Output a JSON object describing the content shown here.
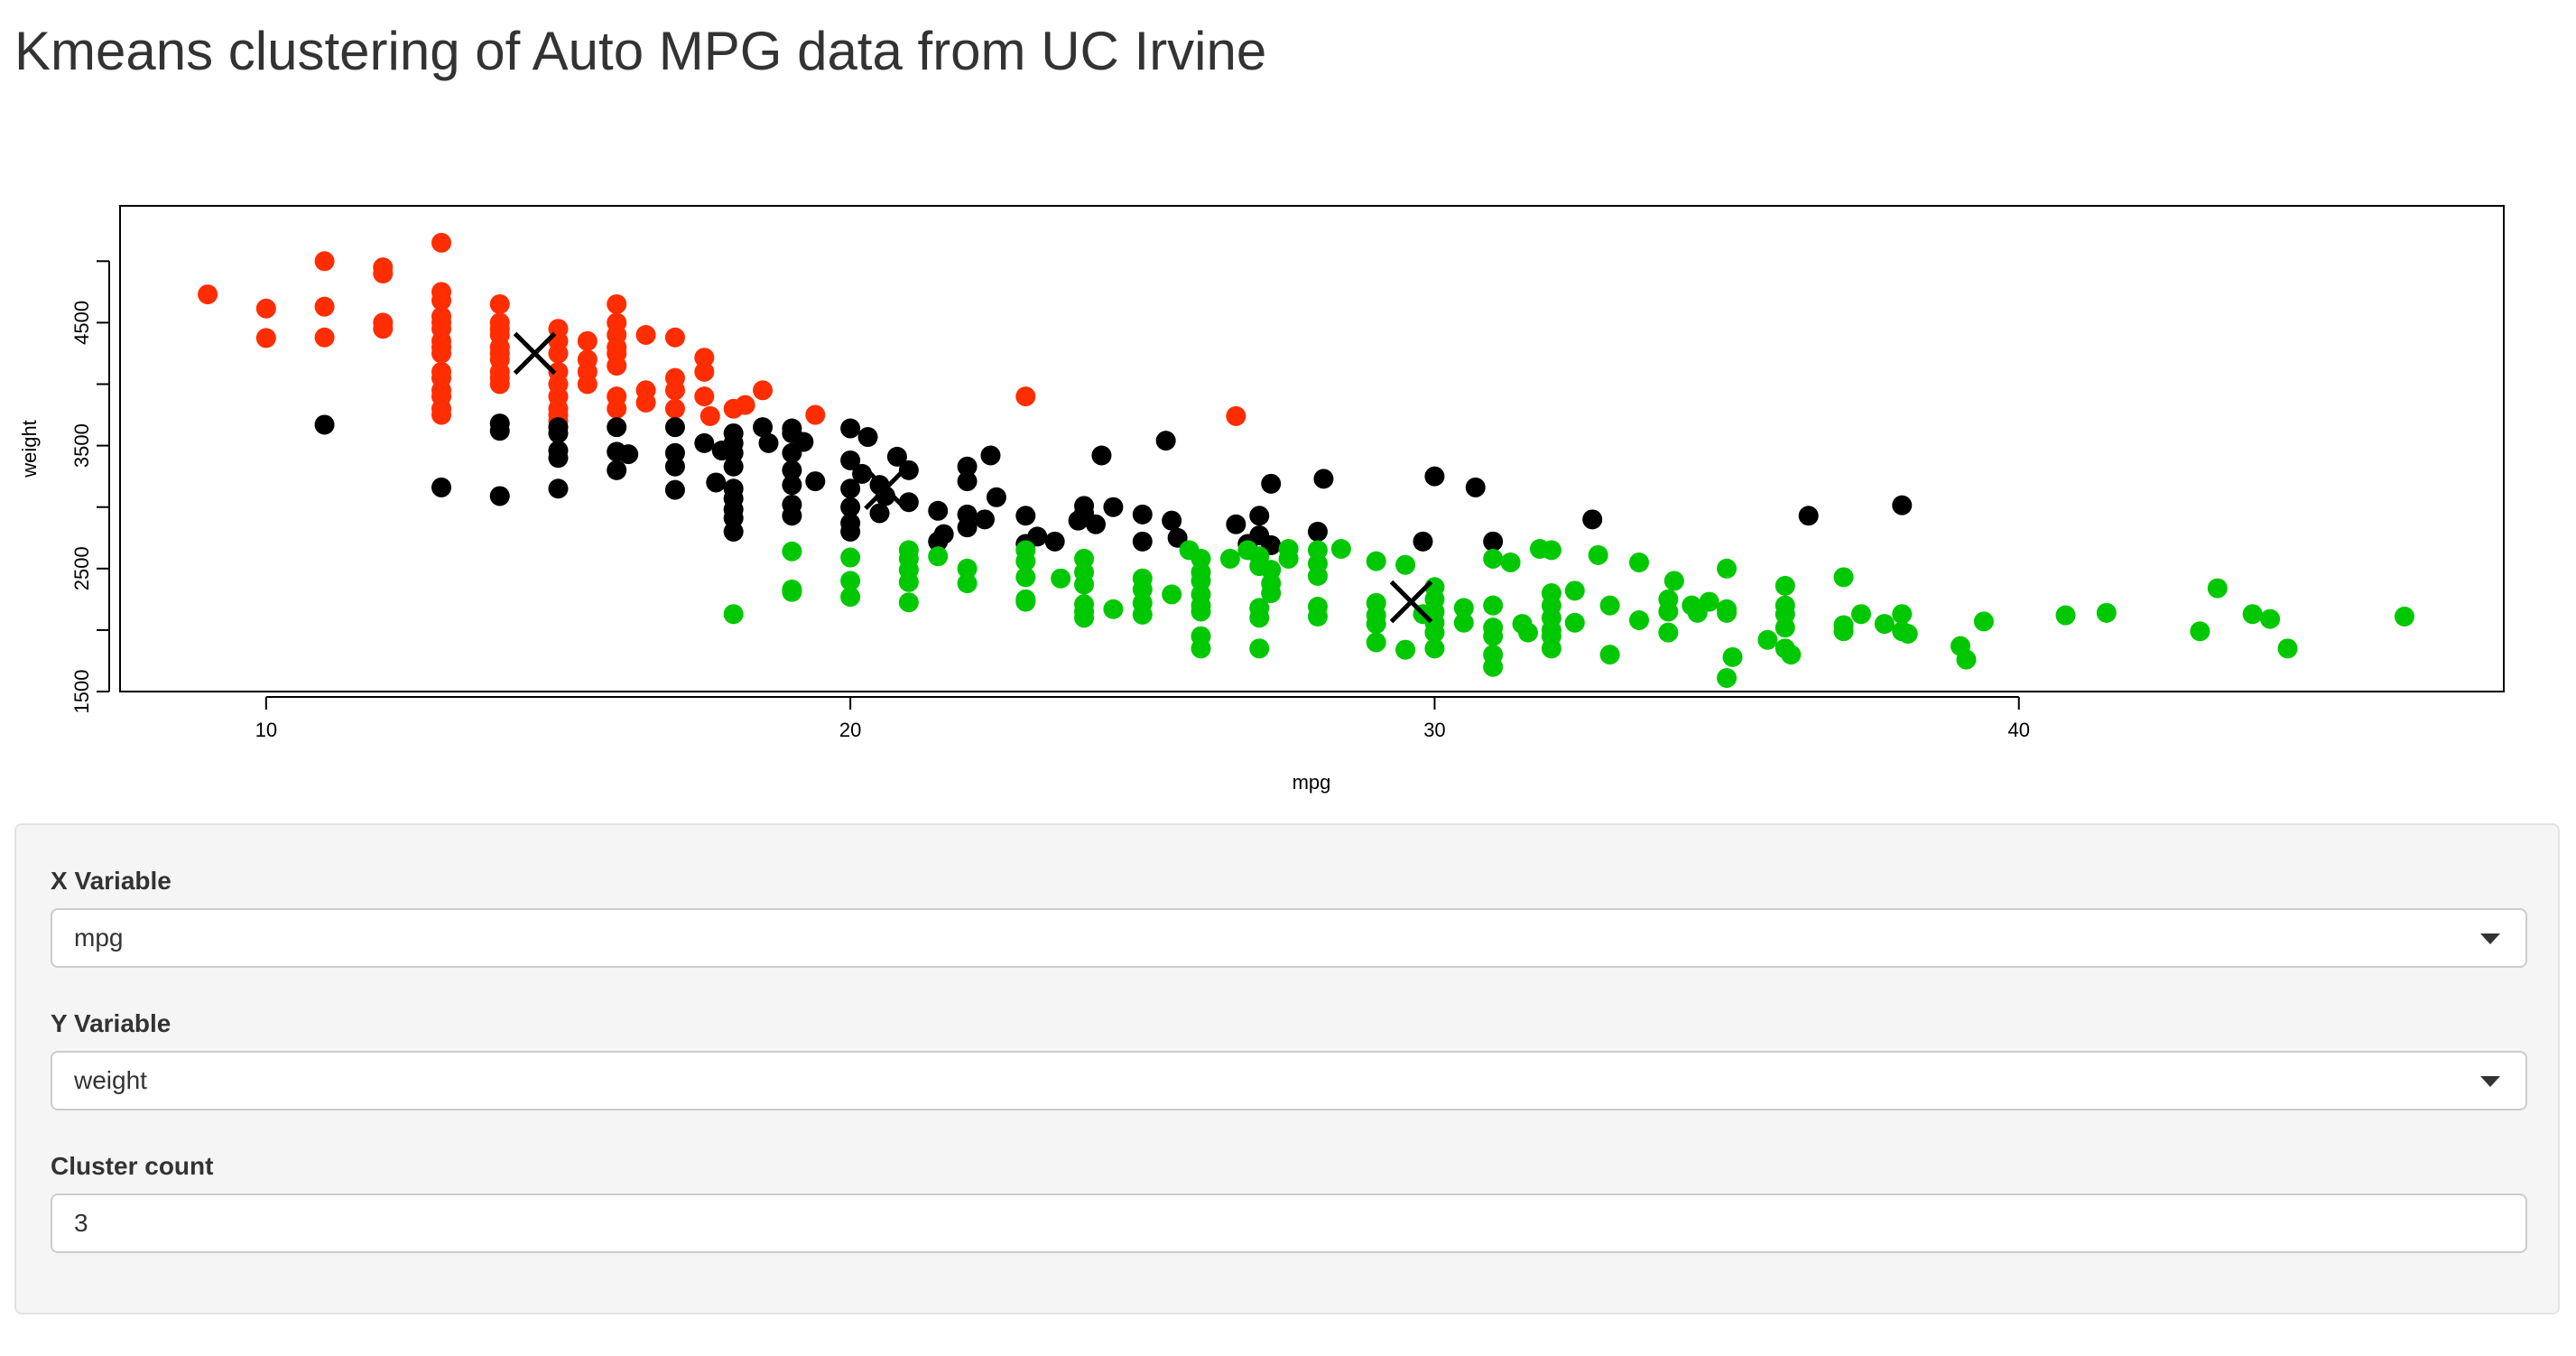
{
  "page": {
    "title": "Kmeans clustering of Auto MPG data from UC Irvine"
  },
  "controls": {
    "x_variable": {
      "label": "X Variable",
      "value": "mpg"
    },
    "y_variable": {
      "label": "Y Variable",
      "value": "weight"
    },
    "cluster_count": {
      "label": "Cluster count",
      "value": "3"
    }
  },
  "colors": {
    "cluster_1": "#ff2d00",
    "cluster_2": "#000000",
    "cluster_3": "#00c800",
    "center": "#000000"
  },
  "chart_data": {
    "type": "scatter",
    "title": "",
    "xlabel": "mpg",
    "ylabel": "weight",
    "xlim": [
      7.5,
      48.3
    ],
    "ylim": [
      1500,
      5450
    ],
    "xticks": [
      10,
      20,
      30,
      40
    ],
    "yticks": [
      1500,
      2500,
      3500,
      4500
    ],
    "grid": false,
    "series": [
      {
        "name": "cluster 1",
        "color": "#ff2d00",
        "points": [
          [
            9,
            4730
          ],
          [
            10,
            4615
          ],
          [
            10,
            4375
          ],
          [
            11,
            5000
          ],
          [
            11,
            4630
          ],
          [
            11,
            4380
          ],
          [
            12,
            4950
          ],
          [
            12,
            4900
          ],
          [
            12,
            4500
          ],
          [
            12,
            4450
          ],
          [
            13,
            5150
          ],
          [
            13,
            4750
          ],
          [
            13,
            4680
          ],
          [
            13,
            4550
          ],
          [
            13,
            4500
          ],
          [
            13,
            4450
          ],
          [
            13,
            4350
          ],
          [
            13,
            4300
          ],
          [
            13,
            4250
          ],
          [
            13,
            4100
          ],
          [
            13,
            4050
          ],
          [
            13,
            3950
          ],
          [
            13,
            3900
          ],
          [
            13,
            3800
          ],
          [
            13,
            3750
          ],
          [
            14,
            4650
          ],
          [
            14,
            4500
          ],
          [
            14,
            4450
          ],
          [
            14,
            4400
          ],
          [
            14,
            4300
          ],
          [
            14,
            4250
          ],
          [
            14,
            4200
          ],
          [
            14,
            4100
          ],
          [
            14,
            4050
          ],
          [
            14,
            4000
          ],
          [
            15,
            4450
          ],
          [
            15,
            4350
          ],
          [
            15,
            4250
          ],
          [
            15,
            4100
          ],
          [
            15,
            4000
          ],
          [
            15,
            3900
          ],
          [
            15,
            3800
          ],
          [
            15,
            3750
          ],
          [
            15,
            3700
          ],
          [
            15,
            3650
          ],
          [
            15.5,
            4350
          ],
          [
            15.5,
            4200
          ],
          [
            15.5,
            4100
          ],
          [
            15.5,
            4000
          ],
          [
            16,
            4650
          ],
          [
            16,
            4500
          ],
          [
            16,
            4400
          ],
          [
            16,
            4300
          ],
          [
            16,
            4250
          ],
          [
            16,
            4150
          ],
          [
            16,
            3900
          ],
          [
            16,
            3800
          ],
          [
            16.5,
            4400
          ],
          [
            16.5,
            3950
          ],
          [
            16.5,
            3850
          ],
          [
            17,
            4380
          ],
          [
            17,
            4050
          ],
          [
            17,
            3950
          ],
          [
            17,
            3800
          ],
          [
            17.5,
            4215
          ],
          [
            17.5,
            4100
          ],
          [
            17.5,
            3900
          ],
          [
            17.6,
            3740
          ],
          [
            18,
            3800
          ],
          [
            18.2,
            3830
          ],
          [
            18.5,
            3950
          ],
          [
            19.4,
            3750
          ],
          [
            23,
            3900
          ],
          [
            26.6,
            3740
          ]
        ]
      },
      {
        "name": "cluster 2",
        "color": "#000000",
        "points": [
          [
            11,
            3670
          ],
          [
            13,
            3160
          ],
          [
            14,
            3680
          ],
          [
            14,
            3620
          ],
          [
            14,
            3090
          ],
          [
            15,
            3650
          ],
          [
            15,
            3600
          ],
          [
            15,
            3460
          ],
          [
            15,
            3400
          ],
          [
            15,
            3150
          ],
          [
            16,
            3650
          ],
          [
            16,
            3450
          ],
          [
            16,
            3300
          ],
          [
            16.2,
            3430
          ],
          [
            17,
            3650
          ],
          [
            17,
            3440
          ],
          [
            17,
            3330
          ],
          [
            17,
            3140
          ],
          [
            17.5,
            3520
          ],
          [
            17.7,
            3200
          ],
          [
            17.8,
            3460
          ],
          [
            18,
            3600
          ],
          [
            18,
            3520
          ],
          [
            18,
            3440
          ],
          [
            18,
            3330
          ],
          [
            18,
            3150
          ],
          [
            18,
            3070
          ],
          [
            18,
            2980
          ],
          [
            18,
            2910
          ],
          [
            18,
            2800
          ],
          [
            18.5,
            3650
          ],
          [
            18.6,
            3520
          ],
          [
            19,
            3640
          ],
          [
            19,
            3600
          ],
          [
            19,
            3440
          ],
          [
            19,
            3300
          ],
          [
            19,
            3180
          ],
          [
            19,
            3020
          ],
          [
            19,
            2930
          ],
          [
            19.2,
            3530
          ],
          [
            19.4,
            3210
          ],
          [
            20,
            3640
          ],
          [
            20,
            3380
          ],
          [
            20,
            3150
          ],
          [
            20,
            3000
          ],
          [
            20,
            2870
          ],
          [
            20,
            2800
          ],
          [
            20.2,
            3270
          ],
          [
            20.3,
            3570
          ],
          [
            20.5,
            3180
          ],
          [
            20.5,
            2950
          ],
          [
            20.6,
            3090
          ],
          [
            20.8,
            3410
          ],
          [
            21,
            3300
          ],
          [
            21,
            3040
          ],
          [
            21.5,
            2970
          ],
          [
            21.5,
            2720
          ],
          [
            21.6,
            2780
          ],
          [
            22,
            3330
          ],
          [
            22,
            3210
          ],
          [
            22,
            2940
          ],
          [
            22,
            2835
          ],
          [
            22.3,
            2900
          ],
          [
            22.4,
            3420
          ],
          [
            22.5,
            3080
          ],
          [
            23,
            2930
          ],
          [
            23,
            2700
          ],
          [
            23.2,
            2760
          ],
          [
            23.5,
            2720
          ],
          [
            23.9,
            2890
          ],
          [
            24,
            3010
          ],
          [
            24,
            2950
          ],
          [
            24.2,
            2860
          ],
          [
            24.3,
            3420
          ],
          [
            24.5,
            3000
          ],
          [
            25,
            2720
          ],
          [
            25,
            2940
          ],
          [
            25.5,
            2890
          ],
          [
            25.4,
            3540
          ],
          [
            25.6,
            2750
          ],
          [
            26.6,
            2860
          ],
          [
            26.8,
            2700
          ],
          [
            27,
            2770
          ],
          [
            27,
            2930
          ],
          [
            27.2,
            3190
          ],
          [
            27.2,
            2690
          ],
          [
            28,
            2800
          ],
          [
            28.1,
            3230
          ],
          [
            29.8,
            2720
          ],
          [
            30,
            3250
          ],
          [
            30.7,
            3160
          ],
          [
            31,
            2720
          ],
          [
            32.7,
            2900
          ],
          [
            36.4,
            2930
          ],
          [
            38,
            3015
          ]
        ]
      },
      {
        "name": "cluster 3",
        "color": "#00c800",
        "points": [
          [
            18,
            2130
          ],
          [
            19,
            2640
          ],
          [
            19,
            2330
          ],
          [
            19,
            2310
          ],
          [
            20,
            2590
          ],
          [
            20,
            2400
          ],
          [
            20,
            2270
          ],
          [
            21,
            2650
          ],
          [
            21,
            2580
          ],
          [
            21,
            2490
          ],
          [
            21,
            2390
          ],
          [
            21,
            2225
          ],
          [
            21.5,
            2600
          ],
          [
            22,
            2500
          ],
          [
            22,
            2380
          ],
          [
            23,
            2650
          ],
          [
            23,
            2560
          ],
          [
            23,
            2430
          ],
          [
            23,
            2250
          ],
          [
            23,
            2230
          ],
          [
            23.6,
            2420
          ],
          [
            24,
            2580
          ],
          [
            24,
            2470
          ],
          [
            24,
            2370
          ],
          [
            24,
            2210
          ],
          [
            24,
            2150
          ],
          [
            24,
            2100
          ],
          [
            24.5,
            2170
          ],
          [
            25,
            2420
          ],
          [
            25,
            2330
          ],
          [
            25,
            2220
          ],
          [
            25,
            2125
          ],
          [
            25.5,
            2290
          ],
          [
            25.8,
            2650
          ],
          [
            26,
            2580
          ],
          [
            26,
            2470
          ],
          [
            26,
            2400
          ],
          [
            26,
            2290
          ],
          [
            26,
            2200
          ],
          [
            26,
            2150
          ],
          [
            26,
            1950
          ],
          [
            26,
            1850
          ],
          [
            26.5,
            2580
          ],
          [
            26.8,
            2650
          ],
          [
            27,
            2600
          ],
          [
            27,
            2520
          ],
          [
            27,
            2180
          ],
          [
            27,
            2100
          ],
          [
            27,
            1850
          ],
          [
            27.2,
            2490
          ],
          [
            27.2,
            2380
          ],
          [
            27.2,
            2300
          ],
          [
            27.5,
            2580
          ],
          [
            27.5,
            2660
          ],
          [
            28,
            2650
          ],
          [
            28,
            2540
          ],
          [
            28,
            2440
          ],
          [
            28,
            2190
          ],
          [
            28,
            2110
          ],
          [
            28.4,
            2660
          ],
          [
            29,
            2560
          ],
          [
            29,
            2220
          ],
          [
            29,
            2120
          ],
          [
            29,
            2050
          ],
          [
            29,
            1900
          ],
          [
            29.5,
            2530
          ],
          [
            29.5,
            1840
          ],
          [
            29.8,
            2130
          ],
          [
            30,
            2350
          ],
          [
            30,
            2250
          ],
          [
            30,
            2150
          ],
          [
            30,
            2060
          ],
          [
            30,
            1980
          ],
          [
            30,
            1850
          ],
          [
            30.5,
            2180
          ],
          [
            30.5,
            2060
          ],
          [
            31,
            2580
          ],
          [
            31,
            2200
          ],
          [
            31,
            2020
          ],
          [
            31,
            1950
          ],
          [
            31,
            1800
          ],
          [
            31,
            1700
          ],
          [
            31.3,
            2550
          ],
          [
            31.5,
            2050
          ],
          [
            31.6,
            1980
          ],
          [
            31.8,
            2660
          ],
          [
            32,
            2650
          ],
          [
            32,
            2300
          ],
          [
            32,
            2200
          ],
          [
            32,
            2100
          ],
          [
            32,
            2000
          ],
          [
            32,
            1950
          ],
          [
            32,
            1850
          ],
          [
            32.4,
            2320
          ],
          [
            32.4,
            2060
          ],
          [
            32.8,
            2610
          ],
          [
            33,
            2200
          ],
          [
            33,
            1800
          ],
          [
            33.5,
            2550
          ],
          [
            33.5,
            2080
          ],
          [
            34,
            2250
          ],
          [
            34,
            2150
          ],
          [
            34,
            1980
          ],
          [
            34.1,
            2400
          ],
          [
            34.4,
            2200
          ],
          [
            34.5,
            2140
          ],
          [
            34.7,
            2230
          ],
          [
            35,
            2170
          ],
          [
            35,
            2500
          ],
          [
            35,
            1610
          ],
          [
            35,
            2140
          ],
          [
            35.1,
            1780
          ],
          [
            35.7,
            1920
          ],
          [
            36,
            2360
          ],
          [
            36,
            2200
          ],
          [
            36,
            2130
          ],
          [
            36,
            2020
          ],
          [
            36,
            1850
          ],
          [
            36.1,
            1800
          ],
          [
            37,
            2430
          ],
          [
            37,
            2040
          ],
          [
            37,
            1990
          ],
          [
            37.3,
            2130
          ],
          [
            37.7,
            2050
          ],
          [
            38,
            2130
          ],
          [
            38,
            1990
          ],
          [
            38.1,
            1970
          ],
          [
            39,
            1870
          ],
          [
            39.1,
            1760
          ],
          [
            39.4,
            2070
          ],
          [
            40.8,
            2120
          ],
          [
            41.5,
            2140
          ],
          [
            43.1,
            1990
          ],
          [
            43.4,
            2340
          ],
          [
            44,
            2130
          ],
          [
            44.3,
            2090
          ],
          [
            44.6,
            1850
          ],
          [
            46.6,
            2110
          ]
        ]
      }
    ],
    "centers": [
      [
        14.6,
        4250
      ],
      [
        20.6,
        3150
      ],
      [
        29.6,
        2230
      ]
    ]
  }
}
